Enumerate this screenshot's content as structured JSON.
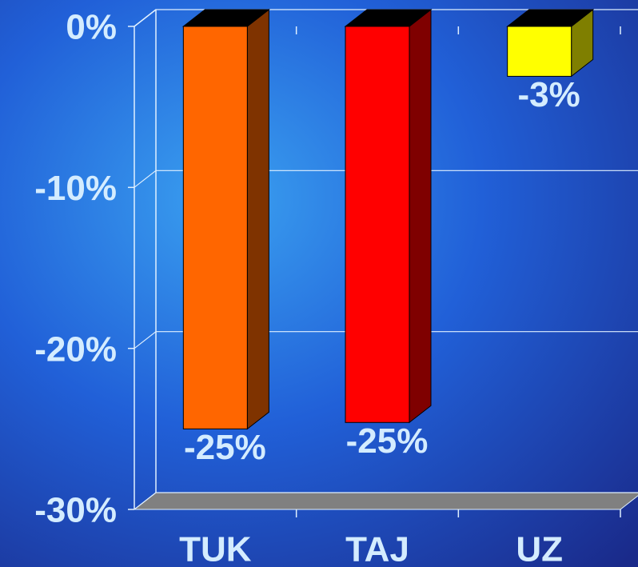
{
  "chart_data": {
    "type": "bar3d",
    "categories": [
      "TUK",
      "TAJ",
      "UZ"
    ],
    "values": [
      -25,
      -24.6,
      -3.1
    ],
    "value_labels": [
      "-25%",
      "-25%",
      "-3%"
    ],
    "colors": [
      "#ff6600",
      "#ff0000",
      "#ffff00"
    ],
    "ylim": [
      -30,
      0
    ],
    "yticks": [
      {
        "value": 0,
        "label": "0%"
      },
      {
        "value": -10,
        "label": "-10%"
      },
      {
        "value": -20,
        "label": "-20%"
      },
      {
        "value": -30,
        "label": "-30%"
      }
    ],
    "grid": true
  }
}
